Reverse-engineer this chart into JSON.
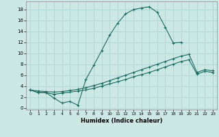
{
  "xlabel": "Humidex (Indice chaleur)",
  "bg_color": "#cce8e4",
  "grid_color": "#aad0cc",
  "line_color": "#1a6b60",
  "xlim": [
    -0.5,
    23.5
  ],
  "ylim": [
    -0.3,
    19.5
  ],
  "xticks": [
    0,
    1,
    2,
    3,
    4,
    5,
    6,
    7,
    8,
    9,
    10,
    11,
    12,
    13,
    14,
    15,
    16,
    17,
    18,
    19,
    20,
    21,
    22,
    23
  ],
  "yticks": [
    0,
    2,
    4,
    6,
    8,
    10,
    12,
    14,
    16,
    18
  ],
  "series1_x": [
    0,
    1,
    2,
    3,
    4,
    5,
    6,
    7,
    8,
    9,
    10,
    11,
    12,
    13,
    14,
    15,
    16,
    17,
    18,
    19
  ],
  "series1_y": [
    3.3,
    2.8,
    2.8,
    1.8,
    0.9,
    1.2,
    0.5,
    5.2,
    7.8,
    10.5,
    13.3,
    15.5,
    17.2,
    18.0,
    18.3,
    18.5,
    17.5,
    14.8,
    11.9,
    12.0
  ],
  "series2_x": [
    0,
    1,
    2,
    3,
    4,
    5,
    6,
    7,
    8,
    9,
    10,
    11,
    12,
    13,
    14,
    15,
    16,
    17,
    18,
    19,
    20,
    21,
    22,
    23
  ],
  "series2_y": [
    3.3,
    3.1,
    3.0,
    2.9,
    3.0,
    3.2,
    3.4,
    3.7,
    4.1,
    4.5,
    5.0,
    5.5,
    6.0,
    6.5,
    7.0,
    7.5,
    8.0,
    8.5,
    9.0,
    9.5,
    9.8,
    6.5,
    7.0,
    6.8
  ],
  "series3_x": [
    0,
    1,
    2,
    3,
    4,
    5,
    6,
    7,
    8,
    9,
    10,
    11,
    12,
    13,
    14,
    15,
    16,
    17,
    18,
    19,
    20,
    21,
    22,
    23
  ],
  "series3_y": [
    3.3,
    2.8,
    2.8,
    2.5,
    2.7,
    2.9,
    3.1,
    3.3,
    3.6,
    4.0,
    4.4,
    4.8,
    5.2,
    5.7,
    6.1,
    6.5,
    7.0,
    7.5,
    8.0,
    8.5,
    8.8,
    6.2,
    6.7,
    6.5
  ],
  "markersize": 3,
  "linewidth": 0.8
}
